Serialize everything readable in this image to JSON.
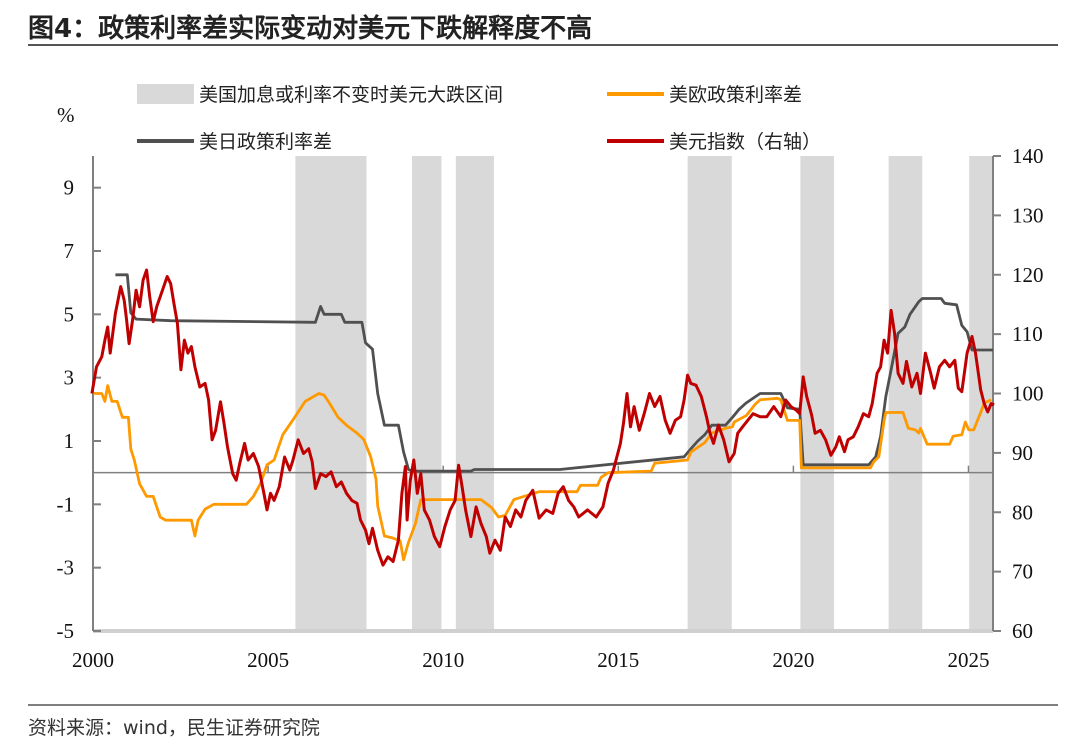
{
  "title": "图4：政策利率差实际变动对美元下跌解释度不高",
  "source": "资料来源：wind，民生证券研究院",
  "chart_data": {
    "type": "line",
    "title": "图4：政策利率差实际变动对美元下跌解释度不高",
    "ylabel_left": "%",
    "xlim": [
      2000,
      2025.7
    ],
    "ylim_left": [
      -5,
      10
    ],
    "ylim_right": [
      60,
      140
    ],
    "x_ticks": [
      2000,
      2005,
      2010,
      2015,
      2020,
      2025
    ],
    "y_ticks_left": [
      9,
      7,
      5,
      3,
      1,
      -1,
      -3,
      -5
    ],
    "y_ticks_right": [
      140,
      130,
      120,
      110,
      100,
      90,
      80,
      70,
      60
    ],
    "grid": false,
    "legend_placement": "top",
    "shaded_regions": {
      "name": "美国加息或利率不变时美元大跌区间",
      "color": "#D9D9D9",
      "ranges": [
        [
          2005.78,
          2007.81
        ],
        [
          2009.11,
          2009.95
        ],
        [
          2010.36,
          2011.45
        ],
        [
          2016.98,
          2018.24
        ],
        [
          2020.2,
          2021.16
        ],
        [
          2022.72,
          2023.68
        ],
        [
          2025.02,
          2025.7
        ]
      ]
    },
    "series": [
      {
        "name": "美欧政策利率差",
        "axis": "left",
        "color": "#FF9900",
        "x": [
          2000.0,
          2000.25,
          2000.34,
          2000.42,
          2000.54,
          2000.69,
          2000.84,
          2001.01,
          2001.08,
          2001.18,
          2001.33,
          2001.53,
          2001.72,
          2001.92,
          2002.07,
          2002.81,
          2002.91,
          2003.0,
          2003.2,
          2003.45,
          2004.38,
          2004.58,
          2004.78,
          2004.97,
          2005.17,
          2005.42,
          2005.76,
          2006.06,
          2006.45,
          2006.6,
          2006.75,
          2007.0,
          2007.24,
          2007.54,
          2007.73,
          2007.93,
          2008.08,
          2008.13,
          2008.32,
          2008.52,
          2008.77,
          2008.87,
          2009.01,
          2009.21,
          2009.36,
          2011.08,
          2011.38,
          2011.58,
          2011.77,
          2012.02,
          2012.74,
          2013.82,
          2013.92,
          2014.41,
          2014.51,
          2014.71,
          2015.94,
          2016.04,
          2016.98,
          2017.07,
          2017.27,
          2017.47,
          2017.67,
          2018.06,
          2018.26,
          2018.31,
          2018.65,
          2018.9,
          2019.05,
          2019.54,
          2019.64,
          2019.83,
          2020.18,
          2020.23,
          2022.2,
          2022.3,
          2022.44,
          2022.59,
          2022.64,
          2023.13,
          2023.28,
          2023.48,
          2023.58,
          2023.63,
          2023.82,
          2024.46,
          2024.56,
          2024.81,
          2024.91,
          2025.01,
          2025.15,
          2025.35,
          2025.45,
          2025.65
        ],
        "y": [
          2.5,
          2.5,
          2.25,
          2.75,
          2.25,
          2.25,
          1.75,
          1.75,
          0.75,
          0.4,
          -0.35,
          -0.75,
          -0.75,
          -1.4,
          -1.5,
          -1.5,
          -2.0,
          -1.5,
          -1.15,
          -1.0,
          -1.0,
          -0.75,
          -0.35,
          0.25,
          0.4,
          1.2,
          1.75,
          2.25,
          2.5,
          2.45,
          2.2,
          1.75,
          1.5,
          1.25,
          1.05,
          0.5,
          -0.2,
          -1.05,
          -2.0,
          -2.05,
          -2.15,
          -2.75,
          -2.2,
          -1.6,
          -0.85,
          -0.85,
          -1.1,
          -1.4,
          -1.35,
          -0.85,
          -0.6,
          -0.6,
          -0.4,
          -0.4,
          -0.15,
          0.0,
          0.05,
          0.3,
          0.4,
          0.65,
          0.8,
          0.95,
          1.25,
          1.4,
          1.45,
          1.6,
          1.8,
          2.15,
          2.3,
          2.35,
          2.3,
          1.65,
          1.65,
          0.15,
          0.15,
          0.35,
          0.5,
          1.65,
          1.9,
          1.9,
          1.4,
          1.35,
          1.25,
          1.4,
          0.9,
          0.9,
          1.15,
          1.2,
          1.6,
          1.35,
          1.35,
          1.9,
          2.2,
          2.3
        ]
      },
      {
        "name": "美日政策利率差",
        "axis": "left",
        "color": "#505050",
        "x": [
          2000.64,
          2000.98,
          2001.08,
          2001.23,
          2002.22,
          2006.35,
          2006.5,
          2006.6,
          2007.09,
          2007.19,
          2007.68,
          2007.78,
          2007.98,
          2008.13,
          2008.32,
          2008.72,
          2008.87,
          2009.01,
          2009.11,
          2010.79,
          2010.89,
          2013.33,
          2016.88,
          2017.07,
          2017.27,
          2017.47,
          2017.67,
          2018.06,
          2018.26,
          2018.45,
          2018.65,
          2019.05,
          2019.64,
          2019.83,
          2020.18,
          2020.28,
          2022.15,
          2022.35,
          2022.49,
          2022.64,
          2022.79,
          2022.99,
          2023.18,
          2023.33,
          2023.58,
          2023.68,
          2024.22,
          2024.32,
          2024.66,
          2024.81,
          2024.96,
          2025.1,
          2025.7
        ],
        "y": [
          6.25,
          6.25,
          5.05,
          4.85,
          4.8,
          4.75,
          5.25,
          5.0,
          5.0,
          4.75,
          4.75,
          4.1,
          3.9,
          2.5,
          1.5,
          1.5,
          0.65,
          0.1,
          0.05,
          0.05,
          0.1,
          0.1,
          0.5,
          0.75,
          1.0,
          1.2,
          1.5,
          1.5,
          1.75,
          2.0,
          2.2,
          2.5,
          2.5,
          2.05,
          2.0,
          0.25,
          0.25,
          0.5,
          1.15,
          2.4,
          3.25,
          4.4,
          4.6,
          5.0,
          5.4,
          5.5,
          5.5,
          5.35,
          5.3,
          4.65,
          4.45,
          3.875,
          3.875
        ]
      },
      {
        "name": "美元指数（右轴）",
        "axis": "right",
        "color": "#C00000",
        "x": [
          1999.97,
          2000.1,
          2000.25,
          2000.34,
          2000.42,
          2000.49,
          2000.64,
          2000.79,
          2000.89,
          2000.96,
          2001.03,
          2001.13,
          2001.23,
          2001.33,
          2001.43,
          2001.53,
          2001.62,
          2001.72,
          2001.82,
          2001.92,
          2002.02,
          2002.12,
          2002.22,
          2002.31,
          2002.41,
          2002.51,
          2002.61,
          2002.71,
          2002.81,
          2002.91,
          2003.05,
          2003.2,
          2003.3,
          2003.4,
          2003.5,
          2003.64,
          2003.74,
          2003.84,
          2003.99,
          2004.09,
          2004.19,
          2004.33,
          2004.43,
          2004.58,
          2004.73,
          2004.88,
          2004.97,
          2005.07,
          2005.17,
          2005.32,
          2005.47,
          2005.62,
          2005.71,
          2005.86,
          2006.01,
          2006.16,
          2006.26,
          2006.35,
          2006.5,
          2006.65,
          2006.8,
          2006.95,
          2007.09,
          2007.24,
          2007.39,
          2007.54,
          2007.64,
          2007.78,
          2007.88,
          2007.98,
          2008.13,
          2008.28,
          2008.42,
          2008.57,
          2008.72,
          2008.82,
          2008.92,
          2008.97,
          2009.06,
          2009.16,
          2009.26,
          2009.36,
          2009.46,
          2009.61,
          2009.75,
          2009.9,
          2010.05,
          2010.2,
          2010.34,
          2010.44,
          2010.54,
          2010.64,
          2010.79,
          2010.94,
          2011.08,
          2011.23,
          2011.33,
          2011.48,
          2011.63,
          2011.77,
          2011.92,
          2012.07,
          2012.22,
          2012.36,
          2012.56,
          2012.74,
          2012.94,
          2013.13,
          2013.28,
          2013.43,
          2013.58,
          2013.73,
          2013.87,
          2014.12,
          2014.37,
          2014.56,
          2014.71,
          2014.86,
          2015.06,
          2015.15,
          2015.25,
          2015.35,
          2015.45,
          2015.6,
          2015.74,
          2015.89,
          2016.04,
          2016.19,
          2016.34,
          2016.48,
          2016.63,
          2016.78,
          2016.88,
          2016.98,
          2017.07,
          2017.22,
          2017.37,
          2017.52,
          2017.62,
          2017.72,
          2017.86,
          2018.01,
          2018.16,
          2018.31,
          2018.41,
          2018.55,
          2018.7,
          2018.85,
          2019.05,
          2019.24,
          2019.44,
          2019.64,
          2019.78,
          2019.93,
          2020.08,
          2020.18,
          2020.28,
          2020.38,
          2020.52,
          2020.62,
          2020.77,
          2020.92,
          2021.07,
          2021.21,
          2021.31,
          2021.46,
          2021.56,
          2021.71,
          2021.85,
          2022.0,
          2022.15,
          2022.25,
          2022.39,
          2022.49,
          2022.59,
          2022.69,
          2022.79,
          2022.89,
          2022.99,
          2023.13,
          2023.23,
          2023.38,
          2023.53,
          2023.63,
          2023.77,
          2023.92,
          2024.02,
          2024.17,
          2024.32,
          2024.46,
          2024.61,
          2024.71,
          2024.81,
          2024.96,
          2025.1,
          2025.2,
          2025.35,
          2025.45,
          2025.55,
          2025.65,
          2025.73
        ],
        "y": [
          100.0,
          104.5,
          106.2,
          109.0,
          111.2,
          106.8,
          113.5,
          118.0,
          115.7,
          112.4,
          108.4,
          112.4,
          117.4,
          114.6,
          119.1,
          120.8,
          116.3,
          112.1,
          114.6,
          116.3,
          118.0,
          119.7,
          118.5,
          115.2,
          111.8,
          104.0,
          109.0,
          106.8,
          107.9,
          104.5,
          101.1,
          101.7,
          98.9,
          92.2,
          93.8,
          98.6,
          95.0,
          91.0,
          86.5,
          85.4,
          88.2,
          91.6,
          88.8,
          89.9,
          87.7,
          83.2,
          80.4,
          83.2,
          82.0,
          84.3,
          89.3,
          87.1,
          88.8,
          92.2,
          89.9,
          90.7,
          88.5,
          84.0,
          86.5,
          86.0,
          86.8,
          84.3,
          85.1,
          83.2,
          82.0,
          81.5,
          78.7,
          77.0,
          74.7,
          77.3,
          73.6,
          71.1,
          72.5,
          71.7,
          75.3,
          83.2,
          87.7,
          78.7,
          85.4,
          88.8,
          83.2,
          86.5,
          80.4,
          78.7,
          75.9,
          74.2,
          77.6,
          80.4,
          82.0,
          87.9,
          84.3,
          80.4,
          75.9,
          80.9,
          78.1,
          75.9,
          73.1,
          75.3,
          73.6,
          79.2,
          77.6,
          80.4,
          79.2,
          82.0,
          83.7,
          79.0,
          80.4,
          79.8,
          83.2,
          84.3,
          82.0,
          80.9,
          79.2,
          80.4,
          79.2,
          80.9,
          84.9,
          87.1,
          91.6,
          95.0,
          100.0,
          94.4,
          97.8,
          93.8,
          96.6,
          100.0,
          97.8,
          99.5,
          95.5,
          93.3,
          95.5,
          96.1,
          98.9,
          103.1,
          101.7,
          101.4,
          99.5,
          96.1,
          93.3,
          91.6,
          94.7,
          92.2,
          88.5,
          89.9,
          93.3,
          94.4,
          95.5,
          96.6,
          96.1,
          96.1,
          97.8,
          96.1,
          98.9,
          97.8,
          97.2,
          96.6,
          102.8,
          99.5,
          96.4,
          93.3,
          93.8,
          92.2,
          89.6,
          91.0,
          92.7,
          90.2,
          92.2,
          92.7,
          94.4,
          96.6,
          96.1,
          98.3,
          103.4,
          104.5,
          109.0,
          106.8,
          114.0,
          110.1,
          103.4,
          101.7,
          105.4,
          101.1,
          103.4,
          100.0,
          106.8,
          103.4,
          100.9,
          104.5,
          105.6,
          104.5,
          105.6,
          100.9,
          100.3,
          106.8,
          109.6,
          106.8,
          100.6,
          98.3,
          96.9,
          98.3,
          98.1
        ]
      }
    ]
  }
}
